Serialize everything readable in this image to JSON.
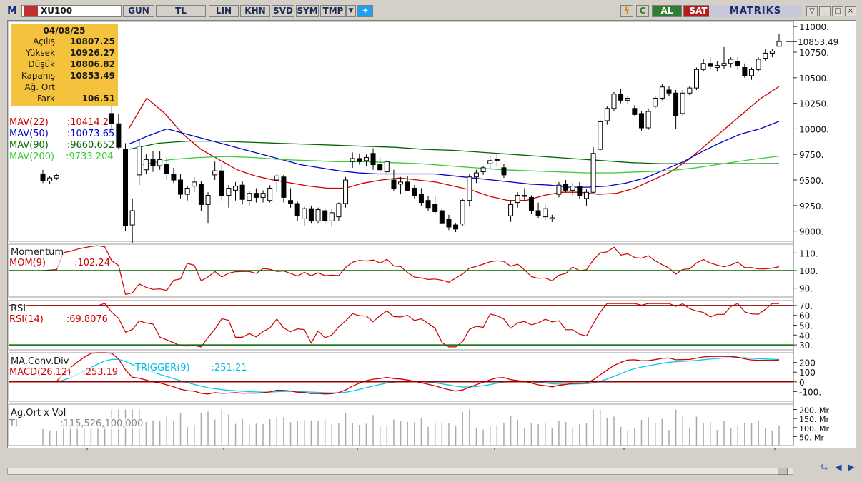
{
  "toolbar": {
    "logo": "M",
    "symbol": "XU100",
    "buttons": [
      "GUN",
      "TL",
      "LIN",
      "KHN",
      "SVD",
      "SYM",
      "TMP"
    ],
    "al": "AL",
    "sat": "SAT",
    "brand": "MATRIKS"
  },
  "info": {
    "date": "04/08/25",
    "rows": [
      {
        "label": "Açılış",
        "value": "10807.25"
      },
      {
        "label": "Yüksek",
        "value": "10926.27"
      },
      {
        "label": "Düşük",
        "value": "10806.82"
      },
      {
        "label": "Kapanış",
        "value": "10853.49"
      },
      {
        "label": "Ağ. Ort",
        "value": ""
      },
      {
        "label": "Fark",
        "value": "106.51"
      }
    ]
  },
  "legend": {
    "mav22": "MAV(22)",
    "mav22_val": ":10414.2",
    "mav50": "MAV(50)",
    "mav50_val": ":10073.65",
    "mav90": "MAV(90)",
    "mav90_val": ":9660.652",
    "mav200": "MAV(200)",
    "mav200_val": ":9733.204",
    "momentum_title": "Momentum",
    "mom": "MOM(9)",
    "mom_val": ":102.24",
    "rsi_title": "RSI",
    "rsi": "RSI(14)",
    "rsi_val": ":69.8076",
    "macd_title": "MA.Conv.Div",
    "macd": "MACD(26,12)",
    "macd_val": ":253.19",
    "trigger": "TRIGGER(9)",
    "trigger_val": ":251.21",
    "vol_title": "Ag.Ort x Vol",
    "vol_unit": "TL",
    "vol_val": ":115,526,100,000"
  },
  "price_axis": {
    "ticks": [
      "11000.",
      "10750.",
      "10500.",
      "10250.",
      "10000.",
      "9750.",
      "9500.",
      "9250.",
      "9000."
    ],
    "last_price": "10853.49"
  },
  "mom_axis": [
    "110.",
    "100.",
    "90."
  ],
  "rsi_axis": [
    "70.",
    "60.",
    "50.",
    "40.",
    "30."
  ],
  "macd_axis": [
    "200",
    "100",
    "0",
    "-100."
  ],
  "vol_axis": [
    "200. Mr",
    "150. Mr",
    "100. Mr",
    "50. Mr"
  ],
  "time_axis": [
    "03/25",
    "04/25",
    "05/25",
    "06/25",
    "07/25",
    "08/25"
  ],
  "colors": {
    "mav22": "#cc0000",
    "mav50": "#0000cc",
    "mav90": "#006600",
    "mav200": "#33cc33",
    "indicator": "#cc0000",
    "trigger": "#00ccee",
    "ref_line_green": "#006600",
    "ref_line_red": "#990000"
  },
  "chart_data": {
    "type": "candlestick",
    "symbol": "XU100",
    "price_range": [
      8900,
      11050
    ],
    "candles": [
      [
        9560,
        9600,
        9470,
        9490
      ],
      [
        9490,
        9540,
        9460,
        9520
      ],
      [
        9520,
        9560,
        9500,
        9545
      ],
      [
        10350,
        10480,
        10330,
        10460
      ],
      [
        10470,
        10560,
        10440,
        10530
      ],
      [
        10540,
        10660,
        10520,
        10640
      ],
      [
        10650,
        10740,
        10630,
        10720
      ],
      [
        10730,
        10820,
        10700,
        10790
      ],
      [
        10800,
        10880,
        10760,
        10830
      ],
      [
        10830,
        10860,
        10740,
        10770
      ],
      [
        10150,
        10380,
        9990,
        10050
      ],
      [
        10050,
        10150,
        9800,
        9820
      ],
      [
        9800,
        9860,
        9000,
        9050
      ],
      [
        9060,
        9320,
        8880,
        9200
      ],
      [
        9550,
        9900,
        9450,
        9830
      ],
      [
        9600,
        9750,
        9560,
        9700
      ],
      [
        9700,
        9780,
        9580,
        9640
      ],
      [
        9640,
        9780,
        9600,
        9700
      ],
      [
        9650,
        9720,
        9500,
        9560
      ],
      [
        9560,
        9620,
        9470,
        9500
      ],
      [
        9500,
        9560,
        9320,
        9360
      ],
      [
        9360,
        9440,
        9300,
        9420
      ],
      [
        9440,
        9530,
        9380,
        9480
      ],
      [
        9460,
        9490,
        9200,
        9260
      ],
      [
        9260,
        9380,
        9080,
        9350
      ],
      [
        9550,
        9680,
        9500,
        9590
      ],
      [
        9590,
        9650,
        9300,
        9350
      ],
      [
        9350,
        9450,
        9230,
        9420
      ],
      [
        9400,
        9480,
        9300,
        9440
      ],
      [
        9450,
        9490,
        9260,
        9310
      ],
      [
        9300,
        9390,
        9250,
        9370
      ],
      [
        9370,
        9420,
        9280,
        9330
      ],
      [
        9330,
        9400,
        9280,
        9370
      ],
      [
        9300,
        9450,
        9280,
        9420
      ],
      [
        9500,
        9560,
        9380,
        9540
      ],
      [
        9530,
        9550,
        9280,
        9330
      ],
      [
        9300,
        9420,
        9230,
        9270
      ],
      [
        9270,
        9290,
        9100,
        9150
      ],
      [
        9120,
        9240,
        9050,
        9220
      ],
      [
        9220,
        9250,
        9080,
        9100
      ],
      [
        9100,
        9230,
        9080,
        9210
      ],
      [
        9200,
        9230,
        9080,
        9100
      ],
      [
        9100,
        9220,
        9040,
        9180
      ],
      [
        9140,
        9280,
        9100,
        9270
      ],
      [
        9270,
        9530,
        9230,
        9500
      ],
      [
        9680,
        9770,
        9620,
        9710
      ],
      [
        9710,
        9760,
        9650,
        9680
      ],
      [
        9690,
        9750,
        9640,
        9720
      ],
      [
        9760,
        9810,
        9600,
        9650
      ],
      [
        9650,
        9720,
        9580,
        9600
      ],
      [
        9580,
        9700,
        9550,
        9680
      ],
      [
        9500,
        9600,
        9390,
        9420
      ],
      [
        9460,
        9530,
        9360,
        9480
      ],
      [
        9480,
        9540,
        9390,
        9400
      ],
      [
        9420,
        9450,
        9320,
        9350
      ],
      [
        9360,
        9420,
        9250,
        9280
      ],
      [
        9300,
        9340,
        9200,
        9230
      ],
      [
        9260,
        9340,
        9160,
        9190
      ],
      [
        9200,
        9230,
        9070,
        9080
      ],
      [
        9120,
        9160,
        9010,
        9040
      ],
      [
        9060,
        9080,
        8990,
        9020
      ],
      [
        9070,
        9320,
        9050,
        9300
      ],
      [
        9300,
        9560,
        9240,
        9530
      ],
      [
        9530,
        9600,
        9470,
        9570
      ],
      [
        9580,
        9640,
        9550,
        9620
      ],
      [
        9660,
        9730,
        9610,
        9690
      ],
      [
        9700,
        9760,
        9640,
        9700
      ],
      [
        9620,
        9660,
        9520,
        9550
      ],
      [
        9150,
        9300,
        9090,
        9260
      ],
      [
        9280,
        9380,
        9230,
        9350
      ],
      [
        9350,
        9420,
        9300,
        9340
      ],
      [
        9330,
        9350,
        9170,
        9200
      ],
      [
        9200,
        9280,
        9130,
        9150
      ],
      [
        9140,
        9260,
        9110,
        9220
      ],
      [
        9120,
        9160,
        9090,
        9130
      ],
      [
        9360,
        9480,
        9330,
        9450
      ],
      [
        9460,
        9500,
        9380,
        9400
      ],
      [
        9400,
        9470,
        9350,
        9440
      ],
      [
        9440,
        9480,
        9320,
        9350
      ],
      [
        9320,
        9410,
        9250,
        9380
      ],
      [
        9380,
        9820,
        9360,
        9760
      ],
      [
        9800,
        10090,
        9780,
        10070
      ],
      [
        10080,
        10220,
        10040,
        10200
      ],
      [
        10200,
        10360,
        10170,
        10340
      ],
      [
        10340,
        10390,
        10250,
        10280
      ],
      [
        10280,
        10320,
        10240,
        10300
      ],
      [
        10200,
        10230,
        10130,
        10140
      ],
      [
        10150,
        10170,
        9980,
        10010
      ],
      [
        10010,
        10200,
        9990,
        10170
      ],
      [
        10220,
        10320,
        10200,
        10300
      ],
      [
        10300,
        10440,
        10280,
        10410
      ],
      [
        10380,
        10420,
        10320,
        10350
      ],
      [
        10350,
        10380,
        10000,
        10130
      ],
      [
        10150,
        10380,
        10130,
        10350
      ],
      [
        10350,
        10420,
        10330,
        10400
      ],
      [
        10400,
        10600,
        10380,
        10580
      ],
      [
        10580,
        10680,
        10560,
        10640
      ],
      [
        10640,
        10700,
        10580,
        10610
      ],
      [
        10600,
        10660,
        10560,
        10620
      ],
      [
        10620,
        10800,
        10590,
        10640
      ],
      [
        10640,
        10700,
        10600,
        10680
      ],
      [
        10660,
        10700,
        10580,
        10620
      ],
      [
        10600,
        10640,
        10500,
        10520
      ],
      [
        10520,
        10600,
        10480,
        10580
      ],
      [
        10580,
        10700,
        10560,
        10680
      ],
      [
        10690,
        10780,
        10660,
        10740
      ],
      [
        10740,
        10780,
        10700,
        10760
      ],
      [
        10807.25,
        10926.27,
        10806.82,
        10853.49
      ]
    ],
    "mav": {
      "mav22": [
        10000,
        10300,
        10150,
        9950,
        9800,
        9700,
        9600,
        9540,
        9500,
        9470,
        9440,
        9420,
        9420,
        9470,
        9500,
        9520,
        9500,
        9480,
        9440,
        9400,
        9340,
        9300,
        9300,
        9350,
        9380,
        9380,
        9360,
        9370,
        9420,
        9500,
        9580,
        9700,
        9850,
        10000,
        10150,
        10300,
        10414.2
      ],
      "mav50": [
        9850,
        9930,
        10000,
        9950,
        9900,
        9850,
        9800,
        9750,
        9700,
        9650,
        9620,
        9590,
        9570,
        9560,
        9560,
        9560,
        9560,
        9540,
        9520,
        9500,
        9480,
        9460,
        9450,
        9430,
        9430,
        9440,
        9470,
        9520,
        9600,
        9680,
        9780,
        9870,
        9950,
        10000,
        10073.65
      ],
      "mav90": [
        9800,
        9860,
        9880,
        9880,
        9870,
        9860,
        9850,
        9840,
        9830,
        9820,
        9800,
        9790,
        9770,
        9750,
        9730,
        9710,
        9690,
        9670,
        9660,
        9660,
        9660,
        9660,
        9660.652
      ],
      "mav200": [
        9650,
        9700,
        9720,
        9730,
        9720,
        9700,
        9690,
        9680,
        9680,
        9670,
        9660,
        9640,
        9620,
        9600,
        9590,
        9580,
        9570,
        9570,
        9580,
        9590,
        9620,
        9660,
        9700,
        9733.204
      ]
    },
    "momentum": {
      "range": [
        85,
        115
      ],
      "reference": 100,
      "last": 102.24
    },
    "rsi": {
      "range": [
        25,
        75
      ],
      "upper": 70,
      "lower": 30,
      "last": 69.8076
    },
    "macd": {
      "range": [
        -200,
        300
      ],
      "zero": 0,
      "macd_last": 253.19,
      "trigger_last": 251.21
    },
    "volume": {
      "last": 115526100000
    },
    "time_labels": [
      "03/25",
      "04/25",
      "05/25",
      "06/25",
      "07/25",
      "08/25"
    ]
  }
}
